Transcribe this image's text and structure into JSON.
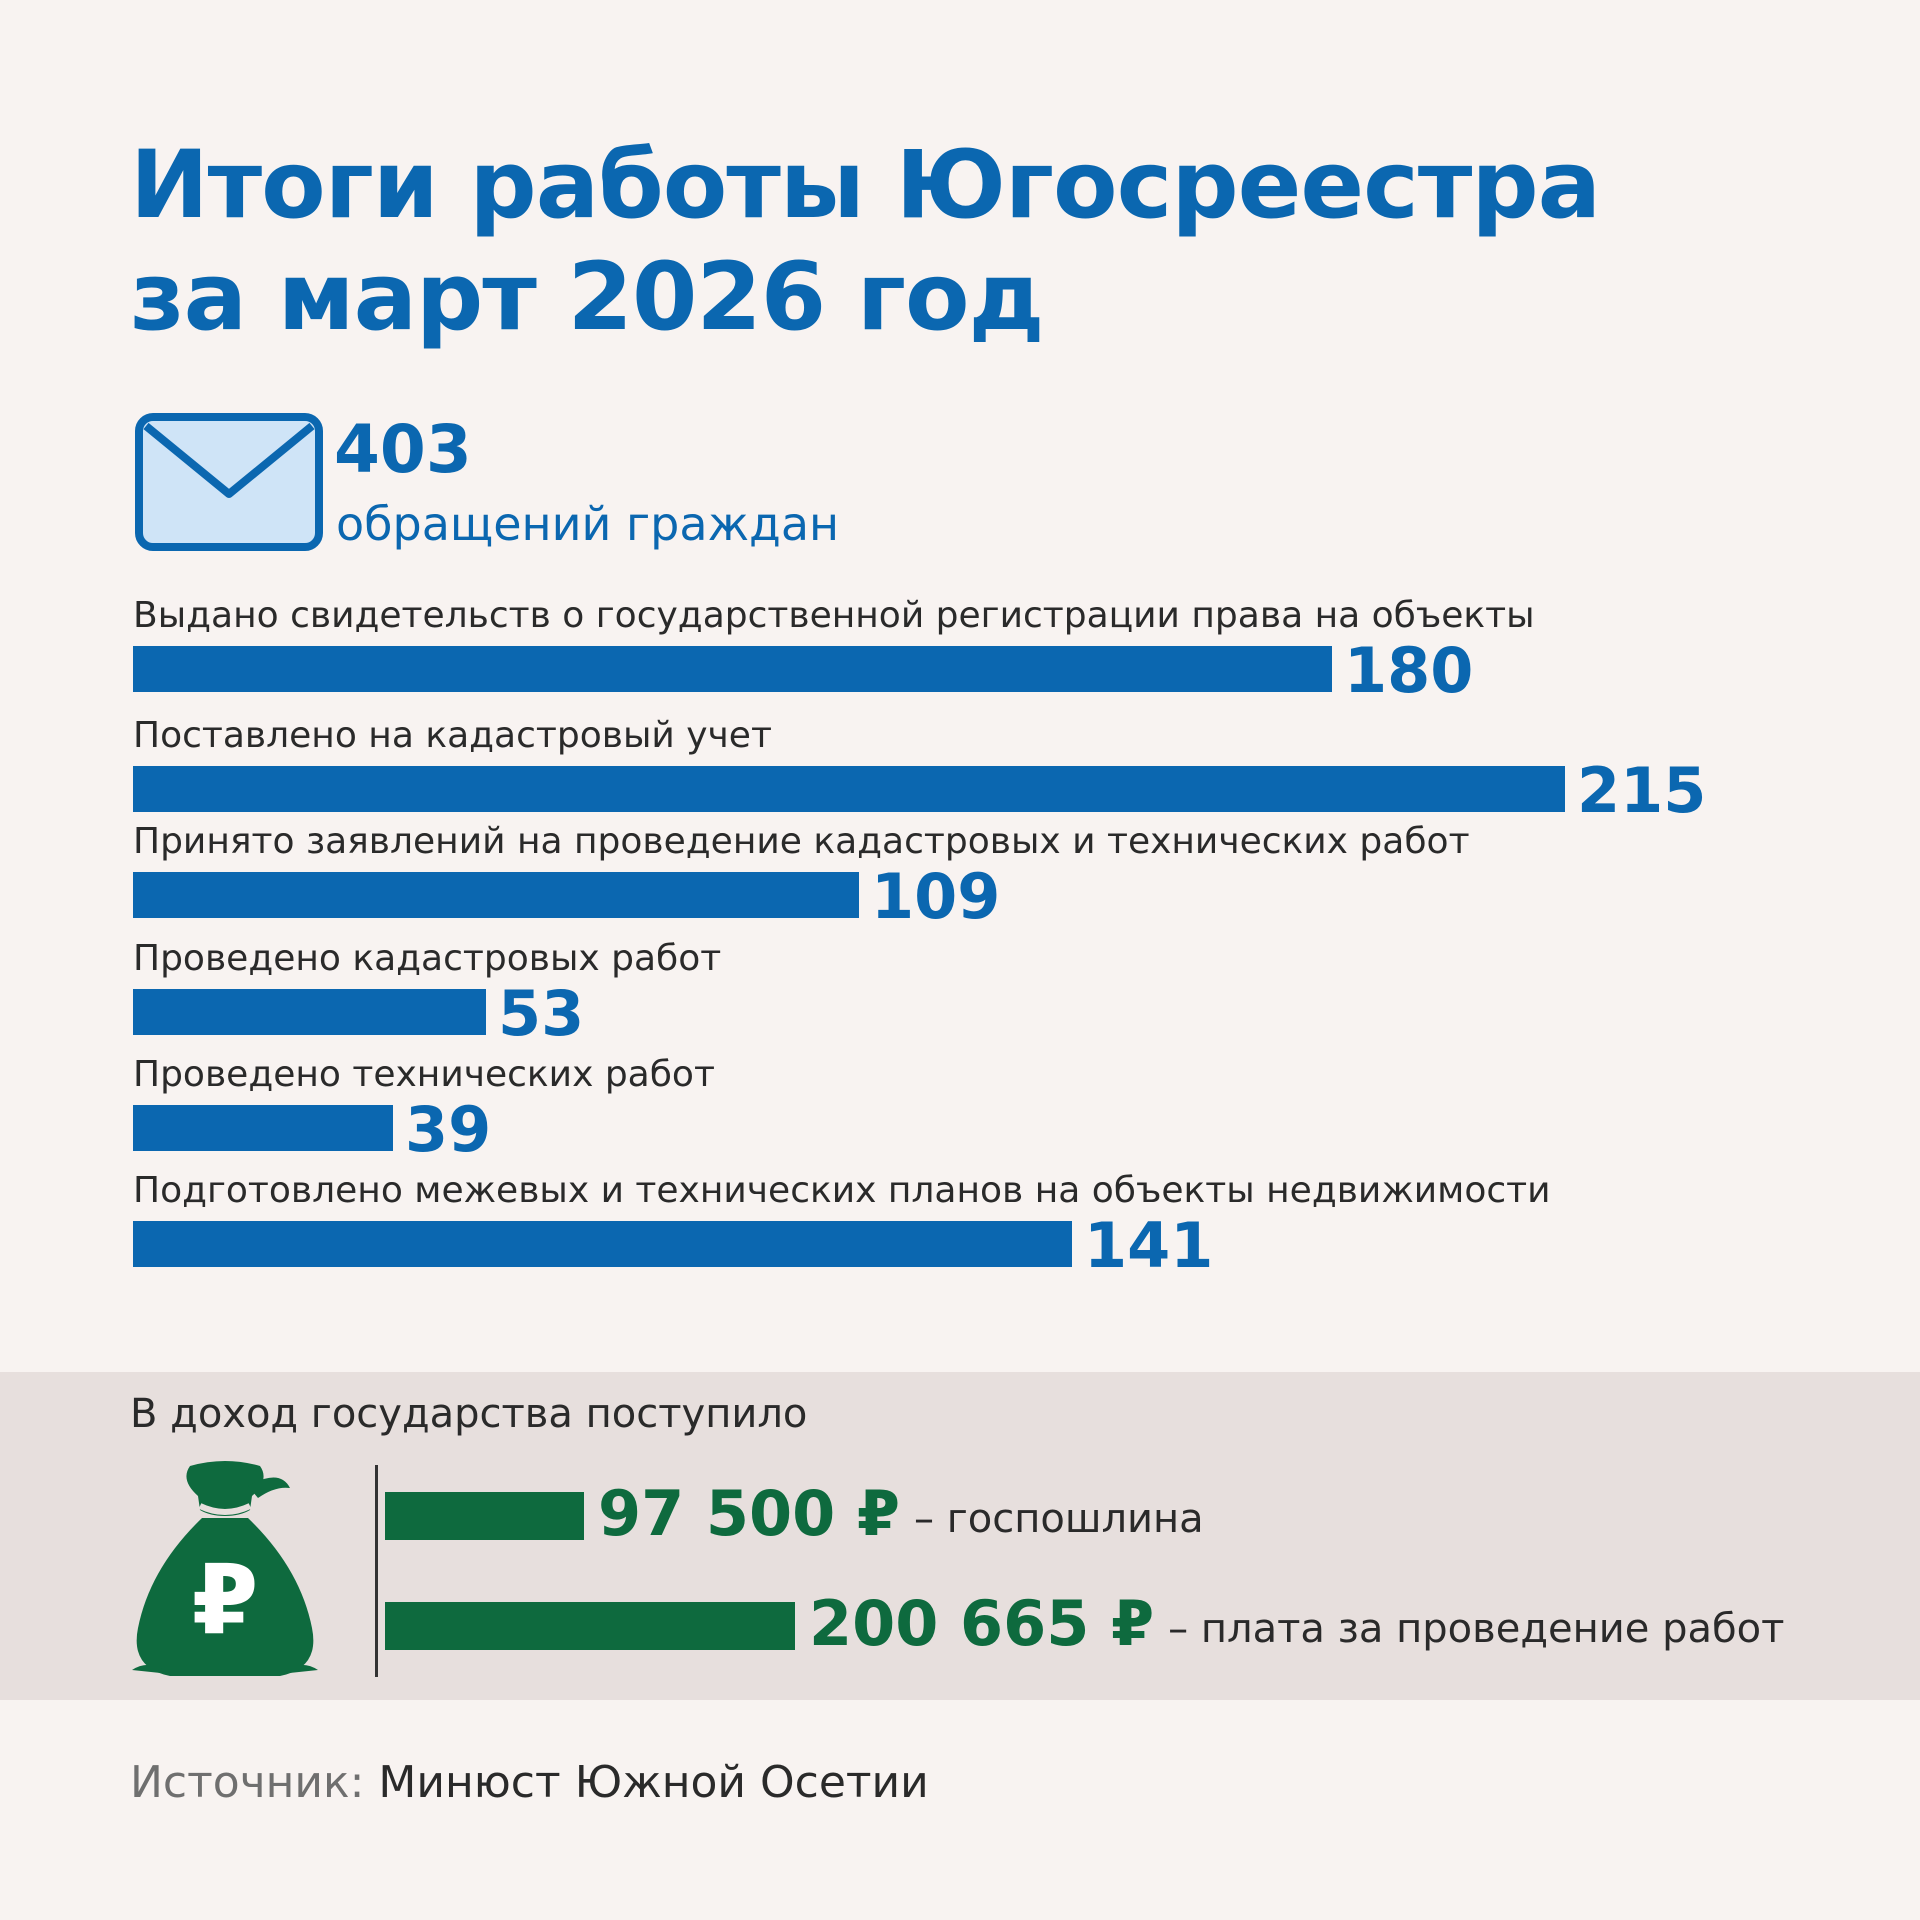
{
  "title": {
    "line1": "Итоги работы Югосреестра",
    "line2": "за март 2026 год"
  },
  "appeals": {
    "count": "403",
    "label": "обращений граждан",
    "icon": "envelope-icon"
  },
  "chart_data": {
    "type": "bar",
    "orientation": "horizontal",
    "categories": [
      "Выдано свидетельств о государственной регистрации права на объекты",
      "Поставлено на кадастровый учет",
      "Принято заявлений на проведение кадастровых и технических работ",
      "Проведено кадастровых работ",
      "Проведено технических работ",
      "Подготовлено межевых и технических планов на объекты недвижимости"
    ],
    "values": [
      180,
      215,
      109,
      53,
      39,
      141
    ],
    "value_labels": [
      "180",
      "215",
      "109",
      "53",
      "39",
      "141"
    ],
    "xlim": [
      0,
      215
    ],
    "color": "#0b67b0",
    "grid": false
  },
  "income": {
    "title": "В доход государства поступило",
    "icon": "money-bag-ruble-icon",
    "color": "#0e6a3e",
    "items": [
      {
        "amount": 97500,
        "value_label": "97 500 ₽",
        "desc": "– госпошлина"
      },
      {
        "amount": 200665,
        "value_label": "200 665 ₽",
        "desc": "– плата за проведение работ"
      }
    ]
  },
  "source": {
    "label": "Источник:",
    "value": "Минюст Южной Осетии"
  }
}
